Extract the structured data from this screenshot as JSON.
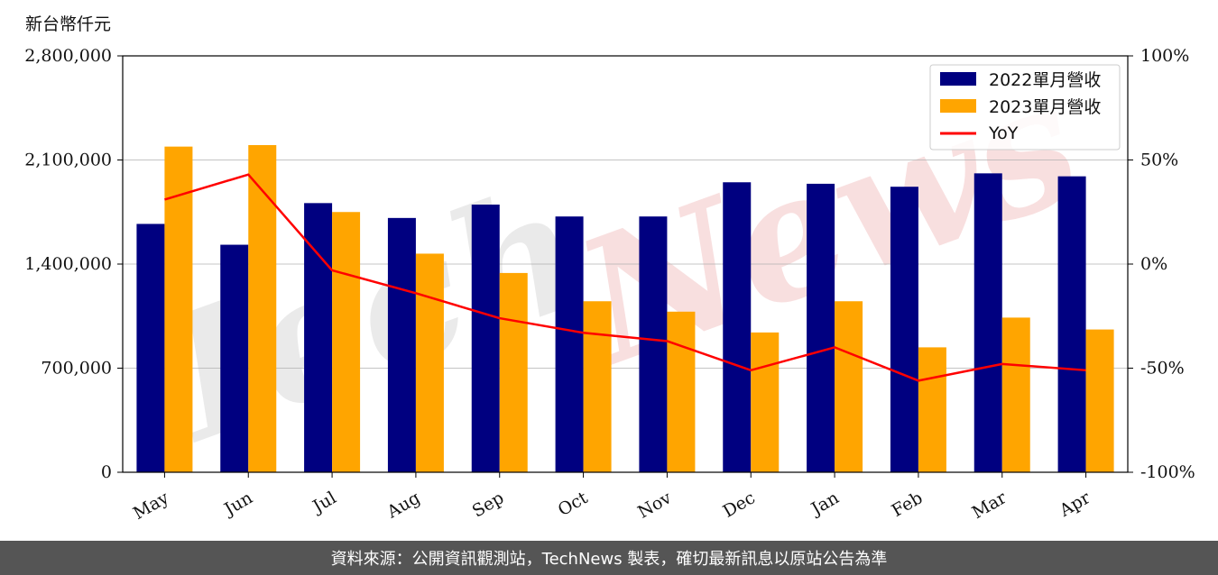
{
  "unit_label": "新台幣仟元",
  "footer_text": "資料來源：公開資訊觀測站，TechNews 製表，確切最新訊息以原站公告為準",
  "watermark": {
    "text_gray": "Tech",
    "text_red": "News"
  },
  "colors": {
    "series2022": "#000080",
    "series2023": "#FFA500",
    "yoy": "#FF0000"
  },
  "chart_data": {
    "type": "bar",
    "categories": [
      "May",
      "Jun",
      "Jul",
      "Aug",
      "Sep",
      "Oct",
      "Nov",
      "Dec",
      "Jan",
      "Feb",
      "Mar",
      "Apr"
    ],
    "series": [
      {
        "name": "2022單月營收",
        "values": [
          1670000,
          1530000,
          1810000,
          1710000,
          1800000,
          1720000,
          1720000,
          1950000,
          1940000,
          1920000,
          2010000,
          1990000
        ]
      },
      {
        "name": "2023單月營收",
        "values": [
          2190000,
          2200000,
          1750000,
          1470000,
          1340000,
          1150000,
          1080000,
          940000,
          1150000,
          840000,
          1040000,
          960000
        ]
      }
    ],
    "line_series": {
      "name": "YoY",
      "axis": "right",
      "values": [
        31,
        43,
        -3,
        -14,
        -26,
        -33,
        -37,
        -51,
        -40,
        -56,
        -48,
        -51
      ]
    },
    "ylim": [
      0,
      2800000
    ],
    "yticks": [
      "0",
      "700,000",
      "1,400,000",
      "2,100,000",
      "2,800,000"
    ],
    "y2lim": [
      -100,
      100
    ],
    "y2ticks": [
      "-100%",
      "-50%",
      "0%",
      "50%",
      "100%"
    ],
    "grid": "horizontal",
    "legend": "top-right"
  }
}
